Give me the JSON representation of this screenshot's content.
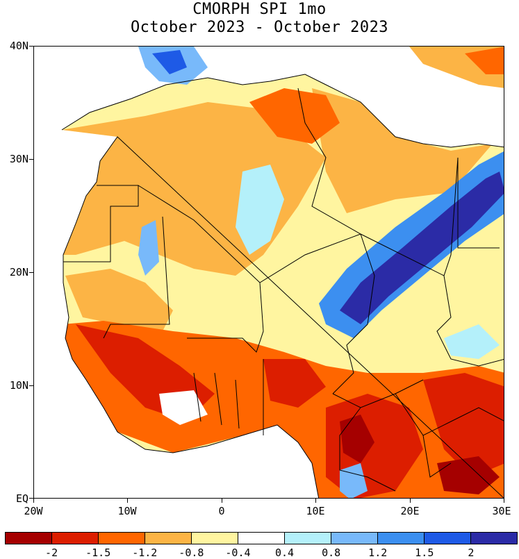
{
  "title": {
    "line1": "CMORPH SPI 1mo",
    "line2": "October 2023 - October 2023"
  },
  "axes": {
    "y_labels": [
      "40N",
      "30N",
      "20N",
      "10N",
      "EQ"
    ],
    "x_labels": [
      "20W",
      "10W",
      "0",
      "10E",
      "20E",
      "30E"
    ]
  },
  "colorbar": {
    "colors": [
      "#a50000",
      "#dc1e00",
      "#ff6600",
      "#fcb445",
      "#fff5a0",
      "#ffffff",
      "#b4f0fa",
      "#78b9fa",
      "#3c8ff0",
      "#1e5ae6",
      "#2b2ba6"
    ],
    "labels": [
      "-2",
      "-1.5",
      "-1.2",
      "-0.8",
      "-0.4",
      "0.4",
      "0.8",
      "1.2",
      "1.5",
      "2"
    ]
  },
  "map": {
    "lon_range": [
      -20,
      30
    ],
    "lat_range": [
      0,
      40
    ],
    "ocean_color": "#ffffff"
  }
}
